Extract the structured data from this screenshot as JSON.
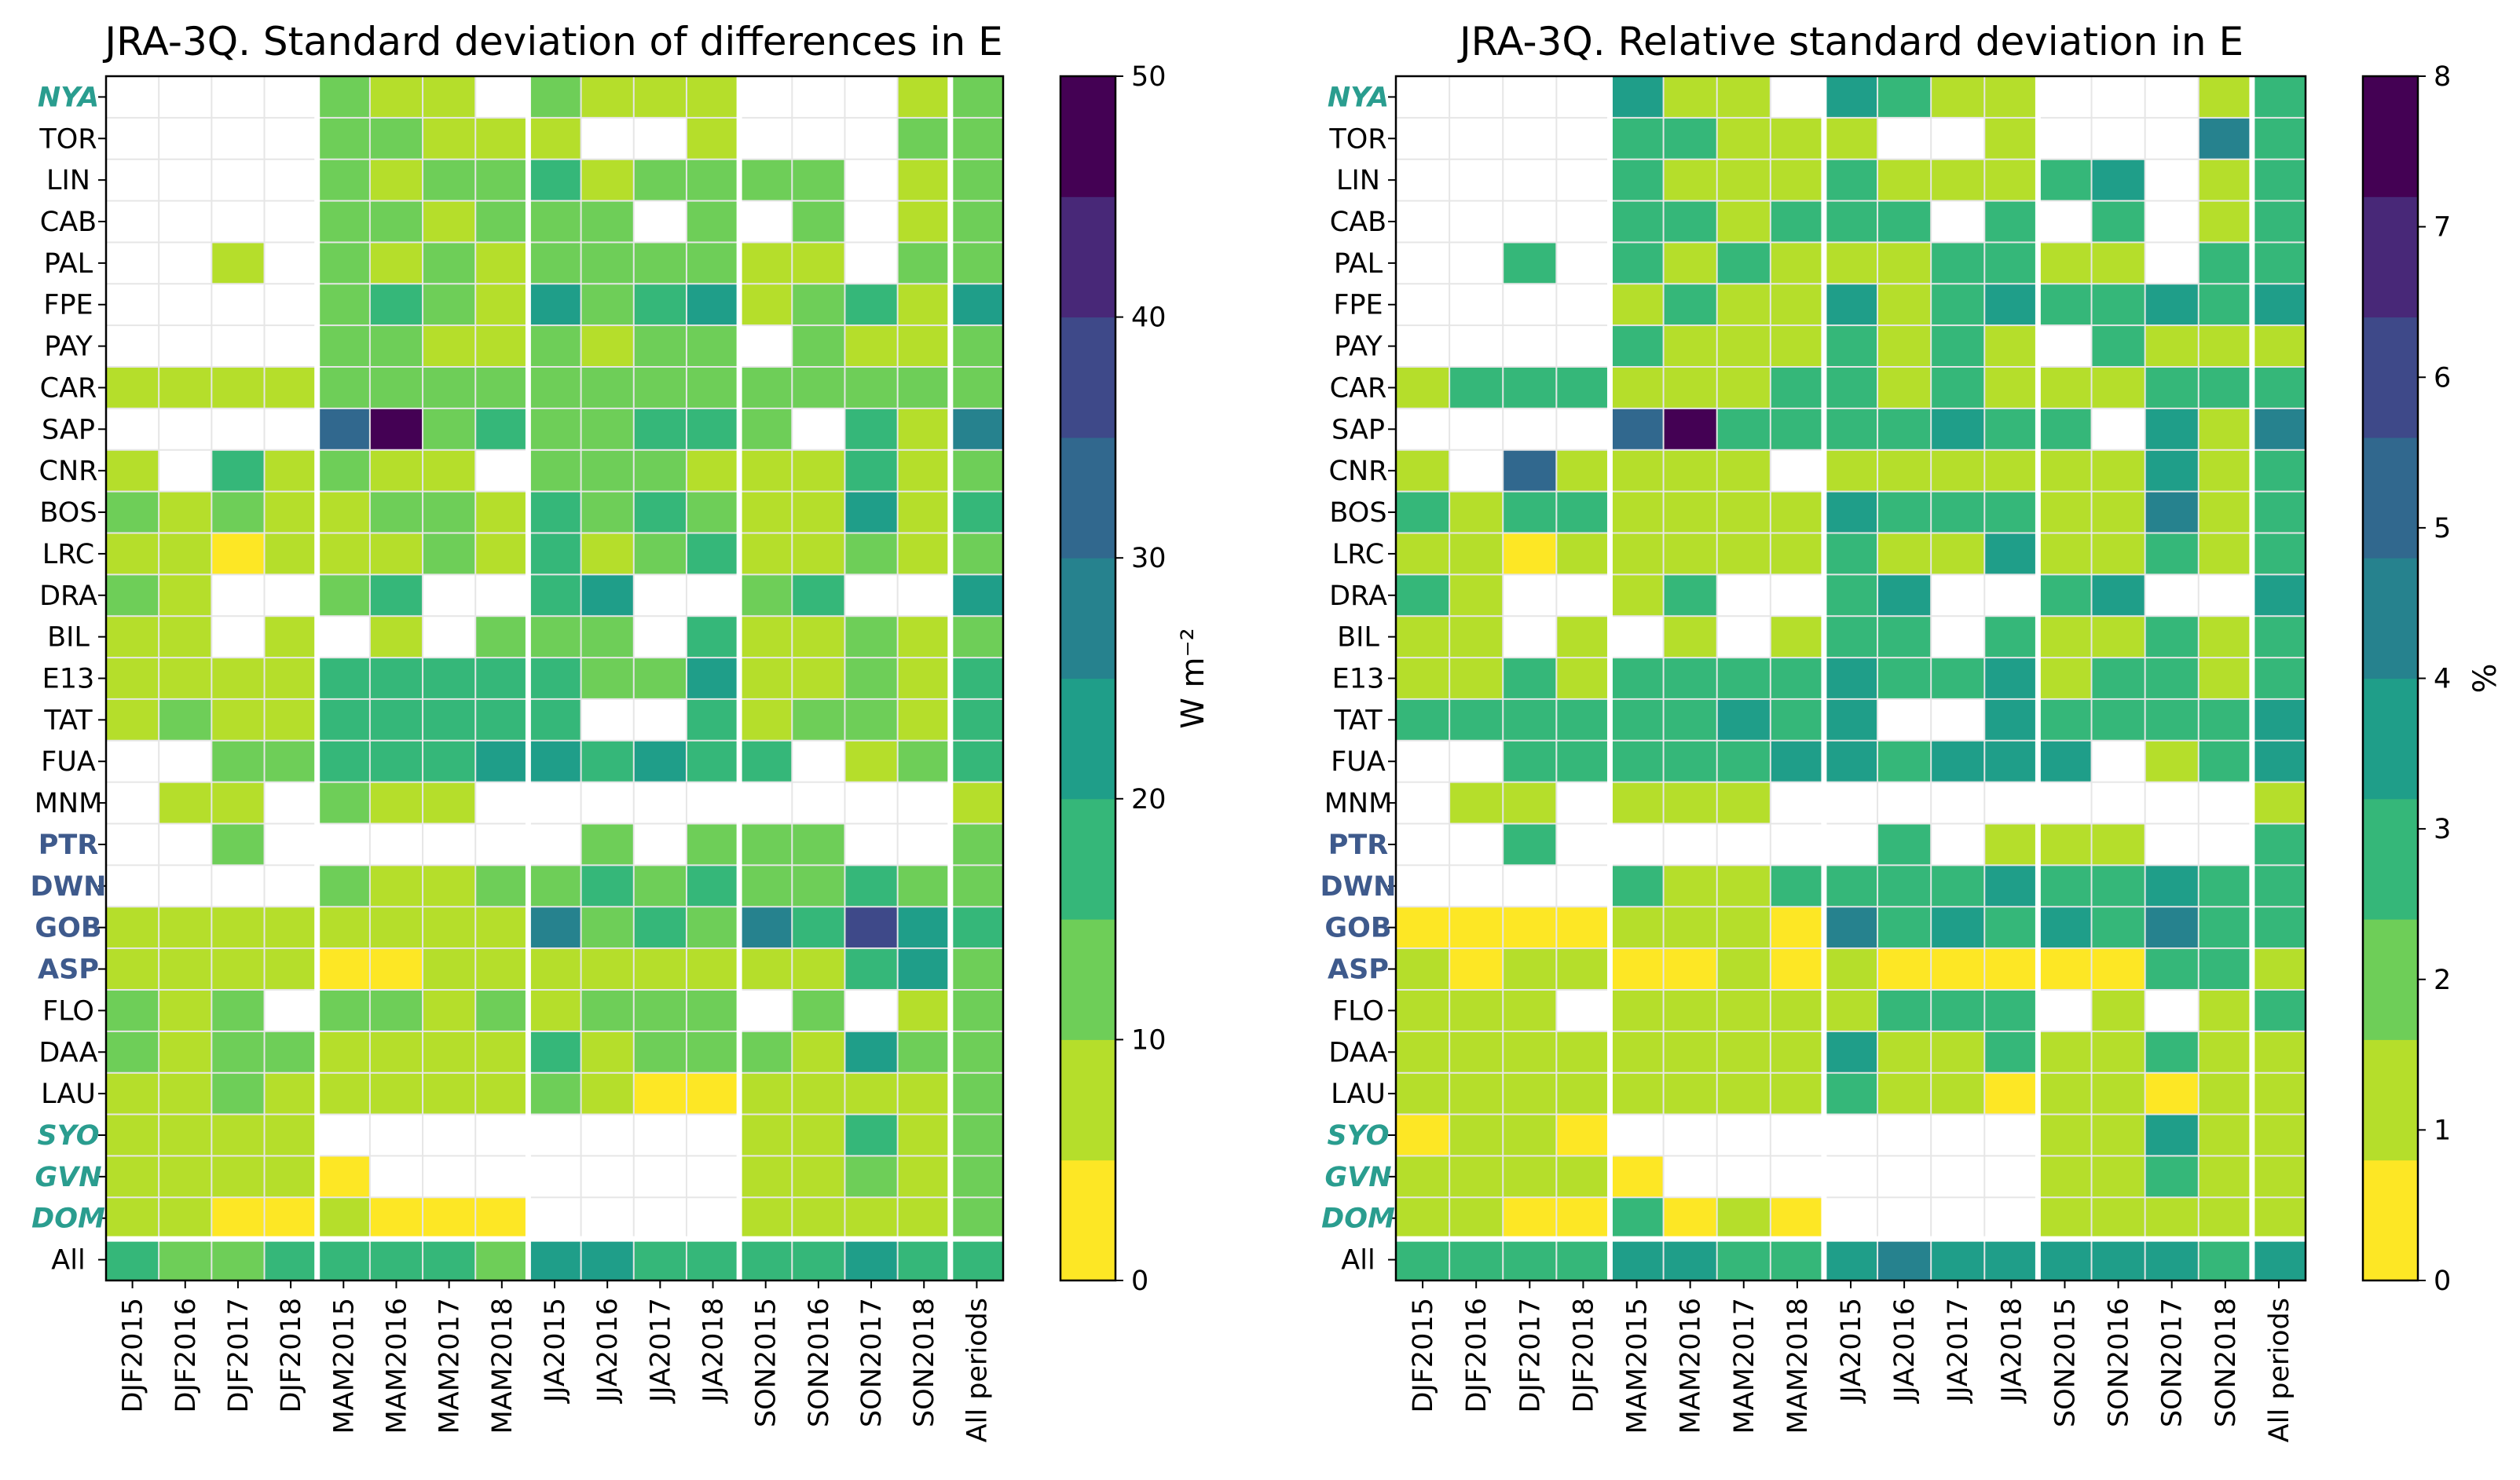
{
  "chart_data": [
    {
      "type": "heatmap",
      "title": "JRA-3Q. Standard deviation of differences in E",
      "colorbar_label": "W m⁻²",
      "colorbar_ticks": [
        "0",
        "10",
        "20",
        "30",
        "40",
        "50"
      ],
      "vmin": 0,
      "vmax": 50,
      "columns": [
        "DJF2015",
        "DJF2016",
        "DJF2017",
        "DJF2018",
        "MAM2015",
        "MAM2016",
        "MAM2017",
        "MAM2018",
        "JJA2015",
        "JJA2016",
        "JJA2017",
        "JJA2018",
        "SON2015",
        "SON2016",
        "SON2017",
        "SON2018",
        "All periods"
      ],
      "rows": [
        "NYA",
        "TOR",
        "LIN",
        "CAB",
        "PAL",
        "FPE",
        "PAY",
        "CAR",
        "SAP",
        "CNR",
        "BOS",
        "LRC",
        "DRA",
        "BIL",
        "E13",
        "TAT",
        "FUA",
        "MNM",
        "PTR",
        "DWN",
        "GOB",
        "ASP",
        "FLO",
        "DAA",
        "LAU",
        "SYO",
        "GVN",
        "DOM",
        "All"
      ],
      "values": [
        [
          null,
          null,
          null,
          null,
          13,
          9,
          9,
          null,
          13,
          9,
          9,
          9,
          null,
          null,
          null,
          9,
          13
        ],
        [
          null,
          null,
          null,
          null,
          13,
          13,
          9,
          9,
          9,
          null,
          null,
          9,
          null,
          null,
          null,
          13,
          13
        ],
        [
          null,
          null,
          null,
          null,
          13,
          9,
          13,
          13,
          17,
          9,
          13,
          13,
          13,
          13,
          null,
          9,
          13
        ],
        [
          null,
          null,
          null,
          null,
          13,
          13,
          9,
          13,
          13,
          13,
          null,
          13,
          null,
          13,
          null,
          9,
          13
        ],
        [
          null,
          null,
          9,
          null,
          13,
          9,
          13,
          9,
          13,
          13,
          13,
          13,
          9,
          9,
          null,
          13,
          13
        ],
        [
          null,
          null,
          null,
          null,
          13,
          17,
          13,
          9,
          22,
          13,
          17,
          22,
          9,
          13,
          17,
          9,
          22
        ],
        [
          null,
          null,
          null,
          null,
          13,
          13,
          9,
          9,
          13,
          9,
          13,
          13,
          null,
          13,
          9,
          9,
          13
        ],
        [
          9,
          9,
          9,
          9,
          13,
          13,
          13,
          13,
          13,
          13,
          13,
          13,
          13,
          13,
          13,
          13,
          13
        ],
        [
          null,
          null,
          null,
          null,
          33,
          48,
          13,
          17,
          13,
          13,
          17,
          17,
          13,
          null,
          17,
          9,
          28
        ],
        [
          9,
          null,
          17,
          9,
          13,
          9,
          9,
          null,
          13,
          13,
          13,
          9,
          9,
          9,
          17,
          9,
          13
        ],
        [
          13,
          9,
          13,
          9,
          9,
          13,
          13,
          9,
          17,
          13,
          17,
          13,
          9,
          9,
          22,
          9,
          17
        ],
        [
          9,
          9,
          3,
          9,
          9,
          9,
          13,
          9,
          17,
          9,
          13,
          17,
          9,
          9,
          13,
          9,
          13
        ],
        [
          13,
          9,
          null,
          null,
          13,
          17,
          null,
          null,
          17,
          22,
          null,
          null,
          13,
          17,
          null,
          null,
          22
        ],
        [
          9,
          9,
          null,
          9,
          null,
          9,
          null,
          13,
          13,
          13,
          null,
          17,
          9,
          9,
          13,
          9,
          13
        ],
        [
          9,
          9,
          9,
          9,
          17,
          17,
          17,
          17,
          17,
          13,
          13,
          22,
          9,
          9,
          13,
          9,
          17
        ],
        [
          9,
          13,
          9,
          9,
          17,
          17,
          17,
          17,
          17,
          null,
          null,
          17,
          9,
          13,
          13,
          9,
          17
        ],
        [
          null,
          null,
          13,
          13,
          17,
          17,
          17,
          22,
          22,
          17,
          22,
          17,
          17,
          null,
          9,
          13,
          17
        ],
        [
          null,
          9,
          9,
          null,
          13,
          9,
          9,
          null,
          null,
          null,
          null,
          null,
          null,
          null,
          null,
          null,
          9
        ],
        [
          null,
          null,
          13,
          null,
          null,
          null,
          null,
          null,
          null,
          13,
          null,
          13,
          13,
          13,
          null,
          null,
          13
        ],
        [
          null,
          null,
          null,
          null,
          13,
          9,
          9,
          13,
          13,
          17,
          13,
          17,
          13,
          13,
          17,
          13,
          13
        ],
        [
          9,
          9,
          9,
          9,
          9,
          9,
          9,
          9,
          28,
          13,
          17,
          13,
          28,
          17,
          38,
          22,
          17
        ],
        [
          9,
          9,
          9,
          9,
          3,
          3,
          9,
          9,
          9,
          9,
          9,
          9,
          9,
          9,
          17,
          22,
          13
        ],
        [
          13,
          9,
          13,
          null,
          13,
          13,
          9,
          13,
          9,
          13,
          13,
          13,
          null,
          13,
          null,
          9,
          13
        ],
        [
          13,
          9,
          13,
          13,
          9,
          9,
          9,
          9,
          17,
          9,
          13,
          13,
          13,
          9,
          22,
          13,
          13
        ],
        [
          9,
          9,
          13,
          9,
          9,
          9,
          9,
          9,
          13,
          9,
          3,
          3,
          9,
          9,
          9,
          9,
          13
        ],
        [
          9,
          9,
          9,
          9,
          null,
          null,
          null,
          null,
          null,
          null,
          null,
          null,
          9,
          9,
          17,
          9,
          13
        ],
        [
          9,
          9,
          9,
          9,
          3,
          null,
          null,
          null,
          null,
          null,
          null,
          null,
          9,
          9,
          13,
          9,
          13
        ],
        [
          9,
          9,
          3,
          3,
          9,
          3,
          3,
          3,
          null,
          null,
          null,
          null,
          9,
          9,
          9,
          9,
          13
        ],
        [
          17,
          13,
          13,
          17,
          17,
          17,
          17,
          13,
          22,
          22,
          17,
          17,
          17,
          17,
          22,
          17,
          17
        ]
      ]
    },
    {
      "type": "heatmap",
      "title": "JRA-3Q. Relative standard deviation in E",
      "colorbar_label": "%",
      "colorbar_ticks": [
        "0",
        "1",
        "2",
        "3",
        "4",
        "5",
        "6",
        "7",
        "8"
      ],
      "vmin": 0,
      "vmax": 8,
      "columns": [
        "DJF2015",
        "DJF2016",
        "DJF2017",
        "DJF2018",
        "MAM2015",
        "MAM2016",
        "MAM2017",
        "MAM2018",
        "JJA2015",
        "JJA2016",
        "JJA2017",
        "JJA2018",
        "SON2015",
        "SON2016",
        "SON2017",
        "SON2018",
        "All periods"
      ],
      "rows": [
        "NYA",
        "TOR",
        "LIN",
        "CAB",
        "PAL",
        "FPE",
        "PAY",
        "CAR",
        "SAP",
        "CNR",
        "BOS",
        "LRC",
        "DRA",
        "BIL",
        "E13",
        "TAT",
        "FUA",
        "MNM",
        "PTR",
        "DWN",
        "GOB",
        "ASP",
        "FLO",
        "DAA",
        "LAU",
        "SYO",
        "GVN",
        "DOM",
        "All"
      ],
      "values": [
        [
          null,
          null,
          null,
          null,
          3.5,
          1.5,
          1.5,
          null,
          3.5,
          2.5,
          1.5,
          1.5,
          null,
          null,
          null,
          1.5,
          2.5
        ],
        [
          null,
          null,
          null,
          null,
          2.5,
          2.5,
          1.5,
          1.5,
          1.5,
          null,
          null,
          1.5,
          null,
          null,
          null,
          4.5,
          2.5
        ],
        [
          null,
          null,
          null,
          null,
          2.5,
          1.5,
          1.5,
          1.5,
          2.5,
          1.5,
          1.5,
          1.5,
          2.5,
          3.5,
          null,
          1.5,
          2.5
        ],
        [
          null,
          null,
          null,
          null,
          2.5,
          2.5,
          1.5,
          2.5,
          2.5,
          2.5,
          null,
          2.5,
          null,
          2.5,
          null,
          1.5,
          2.5
        ],
        [
          null,
          null,
          2.5,
          null,
          2.5,
          1.5,
          2.5,
          1.5,
          1.5,
          1.5,
          2.5,
          2.5,
          1.5,
          1.5,
          null,
          2.5,
          2.5
        ],
        [
          null,
          null,
          null,
          null,
          1.5,
          2.5,
          1.5,
          1.5,
          3.5,
          1.5,
          2.5,
          3.5,
          2.5,
          2.5,
          3.5,
          2.5,
          3.5
        ],
        [
          null,
          null,
          null,
          null,
          2.5,
          1.5,
          1.5,
          1.5,
          2.5,
          1.5,
          2.5,
          1.5,
          null,
          2.5,
          1.5,
          1.5,
          1.5
        ],
        [
          1.5,
          2.5,
          2.5,
          2.5,
          1.5,
          1.5,
          1.5,
          2.5,
          2.5,
          1.5,
          2.5,
          1.5,
          1.5,
          1.5,
          2.5,
          2.5,
          2.5
        ],
        [
          null,
          null,
          null,
          null,
          5.5,
          7.5,
          2.5,
          2.5,
          2.5,
          2.5,
          3.5,
          2.5,
          2.5,
          null,
          3.5,
          1.5,
          4.5
        ],
        [
          1.5,
          null,
          5.5,
          1.5,
          1.5,
          1.5,
          1.5,
          null,
          1.5,
          1.5,
          1.5,
          1.5,
          1.5,
          1.5,
          3.5,
          1.5,
          2.5
        ],
        [
          2.5,
          1.5,
          2.5,
          2.5,
          1.5,
          1.5,
          1.5,
          1.5,
          3.5,
          2.5,
          2.5,
          2.5,
          1.5,
          1.5,
          4.5,
          1.5,
          2.5
        ],
        [
          1.5,
          1.5,
          0.5,
          1.5,
          1.5,
          1.5,
          1.5,
          1.5,
          2.5,
          1.5,
          1.5,
          3.5,
          1.5,
          1.5,
          2.5,
          1.5,
          2.5
        ],
        [
          2.5,
          1.5,
          null,
          null,
          1.5,
          2.5,
          null,
          null,
          2.5,
          3.5,
          null,
          null,
          2.5,
          3.5,
          null,
          null,
          3.5
        ],
        [
          1.5,
          1.5,
          null,
          1.5,
          null,
          1.5,
          null,
          1.5,
          2.5,
          2.5,
          null,
          2.5,
          1.5,
          1.5,
          2.5,
          1.5,
          2.5
        ],
        [
          1.5,
          1.5,
          2.5,
          1.5,
          2.5,
          2.5,
          2.5,
          2.5,
          3.5,
          2.5,
          2.5,
          3.5,
          1.5,
          2.5,
          2.5,
          1.5,
          2.5
        ],
        [
          2.5,
          2.5,
          2.5,
          2.5,
          2.5,
          2.5,
          3.5,
          2.5,
          3.5,
          null,
          null,
          3.5,
          2.5,
          2.5,
          2.5,
          2.5,
          3.5
        ],
        [
          null,
          null,
          2.5,
          2.5,
          2.5,
          2.5,
          2.5,
          3.5,
          3.5,
          2.5,
          3.5,
          3.5,
          3.5,
          null,
          1.5,
          2.5,
          3.5
        ],
        [
          null,
          1.5,
          1.5,
          null,
          1.5,
          1.5,
          1.5,
          null,
          null,
          null,
          null,
          null,
          null,
          null,
          null,
          null,
          1.5
        ],
        [
          null,
          null,
          2.5,
          null,
          null,
          null,
          null,
          null,
          null,
          2.5,
          null,
          1.5,
          1.5,
          1.5,
          null,
          null,
          2.5
        ],
        [
          null,
          null,
          null,
          null,
          2.5,
          1.5,
          1.5,
          2.5,
          2.5,
          2.5,
          2.5,
          3.5,
          2.5,
          2.5,
          3.5,
          2.5,
          2.5
        ],
        [
          0.5,
          0.5,
          0.5,
          0.5,
          1.5,
          1.5,
          1.5,
          0.5,
          4.5,
          2.5,
          3.5,
          2.5,
          3.5,
          2.5,
          4.5,
          2.5,
          2.5
        ],
        [
          1.5,
          0.5,
          1.5,
          1.5,
          0.5,
          0.5,
          1.5,
          0.5,
          1.5,
          0.5,
          0.5,
          0.5,
          0.5,
          0.5,
          2.5,
          2.5,
          1.5
        ],
        [
          1.5,
          1.5,
          1.5,
          null,
          1.5,
          1.5,
          1.5,
          1.5,
          1.5,
          2.5,
          2.5,
          2.5,
          null,
          1.5,
          null,
          1.5,
          2.5
        ],
        [
          1.5,
          1.5,
          1.5,
          1.5,
          1.5,
          1.5,
          1.5,
          1.5,
          3.5,
          1.5,
          1.5,
          2.5,
          1.5,
          1.5,
          2.5,
          1.5,
          1.5
        ],
        [
          1.5,
          1.5,
          1.5,
          1.5,
          1.5,
          1.5,
          1.5,
          1.5,
          2.5,
          1.5,
          1.5,
          0.5,
          1.5,
          1.5,
          0.5,
          1.5,
          1.5
        ],
        [
          0.5,
          1.5,
          1.5,
          0.5,
          null,
          null,
          null,
          null,
          null,
          null,
          null,
          null,
          1.5,
          1.5,
          3.5,
          1.5,
          1.5
        ],
        [
          1.5,
          1.5,
          1.5,
          1.5,
          0.5,
          null,
          null,
          null,
          null,
          null,
          null,
          null,
          1.5,
          1.5,
          2.5,
          1.5,
          1.5
        ],
        [
          1.5,
          1.5,
          0.5,
          0.5,
          2.5,
          0.5,
          1.5,
          0.5,
          null,
          null,
          null,
          null,
          1.5,
          1.5,
          1.5,
          1.5,
          1.5
        ],
        [
          2.5,
          2.5,
          2.5,
          2.5,
          3.5,
          3.5,
          2.5,
          2.5,
          3.5,
          4.5,
          3.5,
          3.5,
          3.5,
          3.5,
          3.5,
          2.5,
          3.5
        ]
      ]
    }
  ],
  "row_label_styles": {
    "antarctic_color": "#2a9d8f",
    "special_color": "#3e5a8c",
    "antarctic_rows": [
      "NYA",
      "SYO",
      "GVN",
      "DOM"
    ],
    "special_rows": [
      "PTR",
      "DWN",
      "GOB",
      "ASP"
    ]
  },
  "palette": [
    "#fde725",
    "#b5de2b",
    "#6ece58",
    "#35b779",
    "#1f9e89",
    "#26828e",
    "#31688e",
    "#3e4989",
    "#482878",
    "#440154"
  ]
}
